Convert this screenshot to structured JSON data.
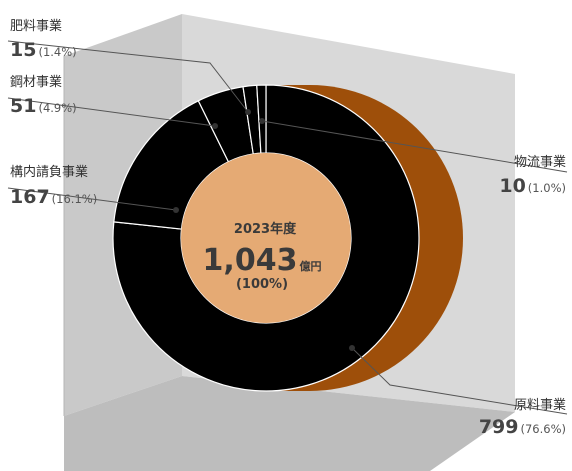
{
  "chart_data": {
    "type": "pie",
    "style": "3d-donut",
    "categories": [
      "原料事業",
      "構内請負事業",
      "鋼材事業",
      "肥料事業",
      "物流事業"
    ],
    "values": [
      799,
      167,
      51,
      15,
      10
    ],
    "percent_labels": [
      "(76.6%)",
      "(16.1%)",
      "(4.9%)",
      "(1.4%)",
      "(1.0%)"
    ],
    "colors": {
      "background_box": "#d9d9d9",
      "extrusion": "#9e4f0a",
      "leader": "#555555"
    },
    "center": {
      "year": "2023年度",
      "total": "1,043",
      "unit": "億円",
      "percent": "(100%)",
      "colors": {
        "text": "#3a3a3a",
        "inner_fill": "#e5aa74"
      }
    }
  }
}
